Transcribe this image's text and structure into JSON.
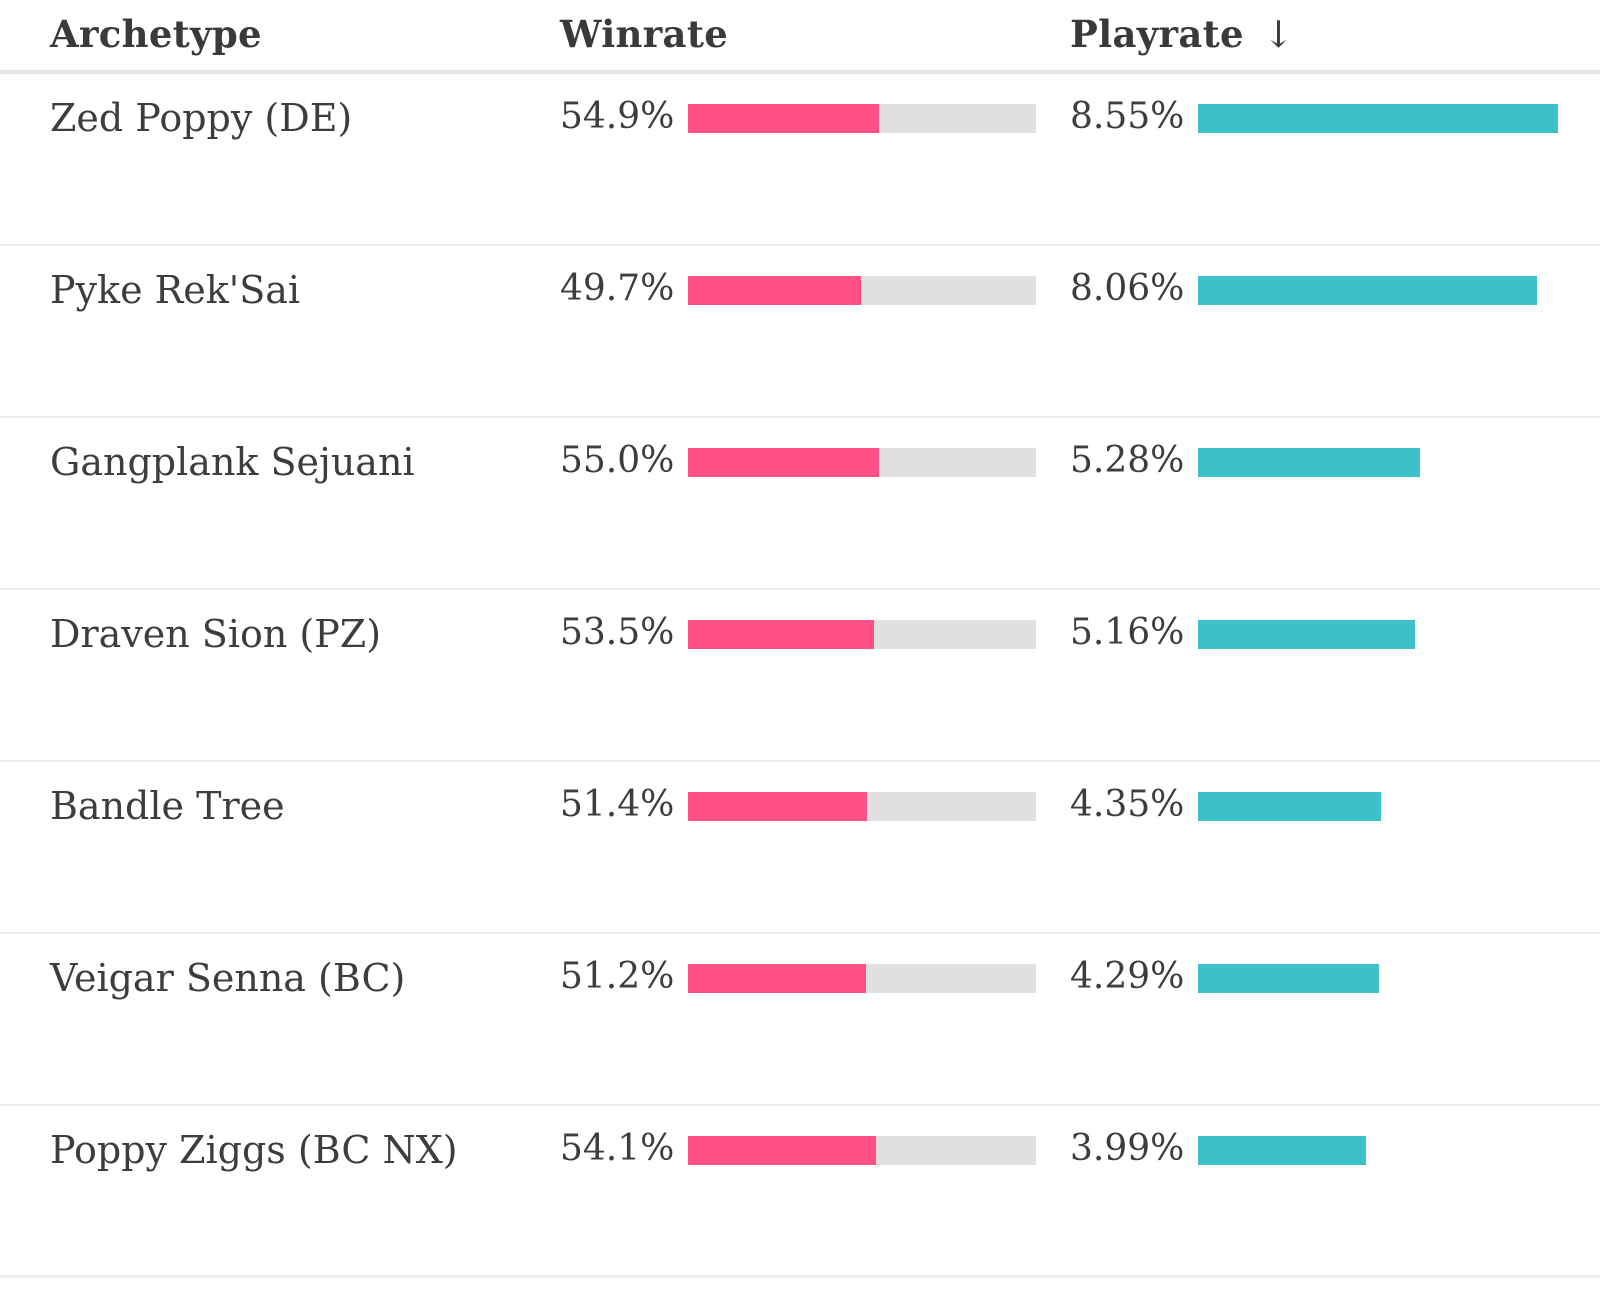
{
  "columns": {
    "archetype": "Archetype",
    "winrate": "Winrate",
    "playrate": "Playrate",
    "sort_indicator": "↓"
  },
  "colors": {
    "winrate_bar": "#ff5185",
    "winrate_track": "#e0e0e0",
    "playrate_bar": "#3dc0c8"
  },
  "chart_data": {
    "type": "table",
    "sorted_by": "Playrate",
    "sort_direction": "descending",
    "rows": [
      {
        "archetype": "Zed Poppy (DE)",
        "winrate": "54.9%",
        "winrate_value": 54.9,
        "playrate": "8.55%",
        "playrate_value": 8.55
      },
      {
        "archetype": "Pyke Rek'Sai",
        "winrate": "49.7%",
        "winrate_value": 49.7,
        "playrate": "8.06%",
        "playrate_value": 8.06
      },
      {
        "archetype": "Gangplank Sejuani",
        "winrate": "55.0%",
        "winrate_value": 55.0,
        "playrate": "5.28%",
        "playrate_value": 5.28
      },
      {
        "archetype": "Draven Sion (PZ)",
        "winrate": "53.5%",
        "winrate_value": 53.5,
        "playrate": "5.16%",
        "playrate_value": 5.16
      },
      {
        "archetype": "Bandle Tree",
        "winrate": "51.4%",
        "winrate_value": 51.4,
        "playrate": "4.35%",
        "playrate_value": 4.35
      },
      {
        "archetype": "Veigar Senna (BC)",
        "winrate": "51.2%",
        "winrate_value": 51.2,
        "playrate": "4.29%",
        "playrate_value": 4.29
      },
      {
        "archetype": "Poppy Ziggs (BC NX)",
        "winrate": "54.1%",
        "winrate_value": 54.1,
        "playrate": "3.99%",
        "playrate_value": 3.99
      }
    ]
  }
}
